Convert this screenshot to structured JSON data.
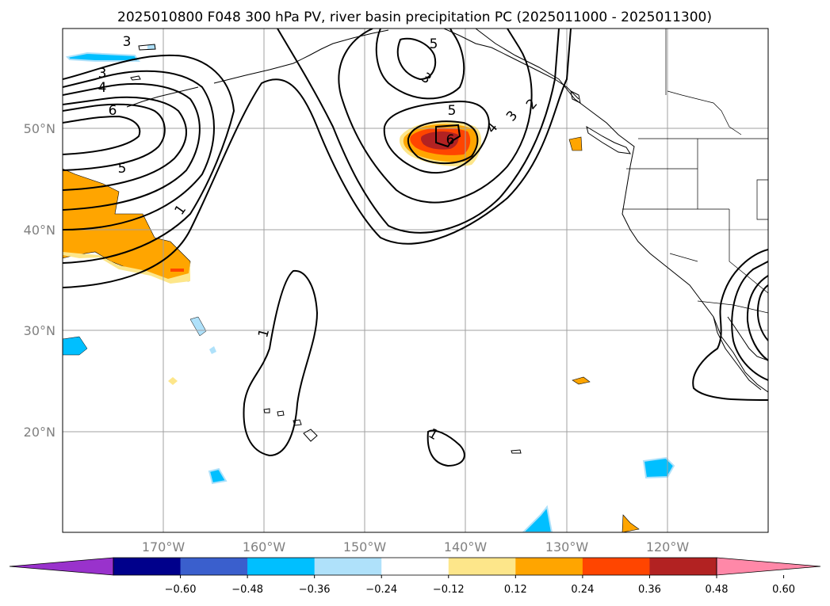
{
  "title": "2025010800 F048 300 hPa PV, river basin precipitation PC (2025011000 - 2025011300)",
  "map": {
    "lat_labels": [
      "50°N",
      "40°N",
      "30°N",
      "20°N"
    ],
    "lon_labels": [
      "170°W",
      "160°W",
      "150°W",
      "140°W",
      "130°W",
      "120°W"
    ],
    "contour_labels": [
      "3",
      "3",
      "4",
      "6",
      "5",
      "1",
      "5",
      "3",
      "5",
      "6",
      "4",
      "3",
      "2",
      "1",
      "1"
    ],
    "grid": true
  },
  "colorbar": {
    "ticks": [
      "−0.60",
      "−0.48",
      "−0.36",
      "−0.24",
      "−0.12",
      "0.12",
      "0.24",
      "0.36",
      "0.48",
      "0.60"
    ],
    "colors": [
      "#9932cc",
      "#00008b",
      "#3a5fcd",
      "#00bfff",
      "#afe1fa",
      "#ffffff",
      "#fde68a",
      "#ffa500",
      "#ff4500",
      "#b22222",
      "#ff88a8"
    ]
  },
  "colors": {
    "pos_light": "#fde68a",
    "pos_orange": "#ffa500",
    "pos_red": "#ff4500",
    "pos_darkred": "#b22222",
    "neg_light": "#afe1fa",
    "neg_blue": "#00bfff"
  }
}
